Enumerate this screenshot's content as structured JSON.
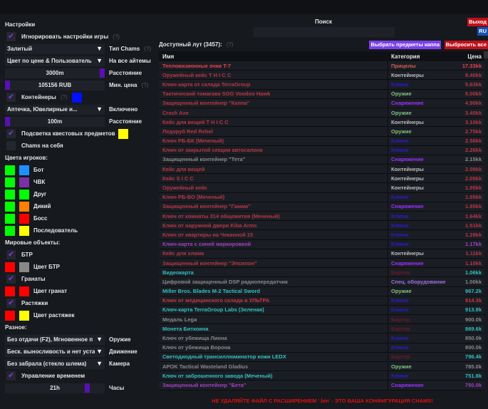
{
  "header": {
    "search_label": "Поиск",
    "exit": "Выход",
    "lang": "RU"
  },
  "settings": {
    "title": "Настройки",
    "ignore_game": "Игнорировать настройки игры",
    "help": "(?)",
    "chams_mode": "Залитый",
    "chams_type_label": "Тип Chams",
    "color_mode": "Цвет по цене & Пользователь",
    "all_items_label": "На все айтемы",
    "distance": "3000m",
    "distance_label": "Расстояние",
    "min_price": "105156 RUB",
    "min_price_label": "Мин. цена",
    "containers": "Контейнеры",
    "container_types": "Аптечка, Ювелирные и...",
    "enabled_label": "Включено",
    "container_distance": "100m",
    "container_distance_label": "Расстояние",
    "quest_highlight": "Подсветка квестовых предметов",
    "self_chams": "Chams на себя",
    "player_colors_title": "Цвета игроков:",
    "players": [
      {
        "label": "Бот",
        "c1": "#00ff00",
        "c2": "#1e90ff"
      },
      {
        "label": "ЧВК",
        "c1": "#00ff00",
        "c2": "#7b2fa8"
      },
      {
        "label": "Друг",
        "c1": "#00ff00",
        "c2": "#00ff00"
      },
      {
        "label": "Дикий",
        "c1": "#00ff00",
        "c2": "#ff8000"
      },
      {
        "label": "Босс",
        "c1": "#00ff00",
        "c2": "#ff0000"
      },
      {
        "label": "Последователь",
        "c1": "#00ff00",
        "c2": "#ffff00"
      }
    ],
    "world_title": "Мировые объекты:",
    "btr": "БТР",
    "btr_color": "Цвет БТР",
    "grenades": "Гранаты",
    "grenades_color": "Цвет гранат",
    "tripwires": "Растяжки",
    "tripwires_color": "Цвет растяжек",
    "misc_title": "Разное:",
    "weapon": "Без отдачи (F2), Мгновенное п",
    "weapon_label": "Оружие",
    "movement": "Беск. выносливость и нет уста",
    "movement_label": "Движение",
    "camera": "Без забрала (стекло шлема)",
    "camera_label": "Камера",
    "time_control": "Управление временем",
    "hours": "21h",
    "hours_label": "Часы"
  },
  "loot": {
    "title": "Доступный лут (3457):",
    "help": "(?)",
    "select_kappa": "Выбрать предметы каппа",
    "drop_all": "Выбросить все",
    "columns": [
      "Имя",
      "Категория",
      "Цена"
    ],
    "rows": [
      [
        "Тепловизионные очки T-7",
        "Прицелы",
        "17.33kk",
        "#e84050",
        "#d06050"
      ],
      [
        "Оружейный кейс T H I C C",
        "Контейнеры",
        "8.40kk",
        "#b83545",
        "#bbbbbb"
      ],
      [
        "Ключ-карта от склада TerraGroup",
        "Ключи",
        "5.63kk",
        "#b83545",
        "#2a1ccc"
      ],
      [
        "Тактический томагавк SOG Voodoo Hawk",
        "Оружие",
        "5.00kk",
        "#b83545",
        "#80c080"
      ],
      [
        "Защищенный контейнер \"Каппа\"",
        "Снаряжение",
        "4.90kk",
        "#b83545",
        "#9b30ff"
      ],
      [
        "Crash Axe",
        "Оружие",
        "3.40kk",
        "#b83545",
        "#80c080"
      ],
      [
        "Кейс для вещей T H I C C",
        "Контейнеры",
        "3.10kk",
        "#b83545",
        "#bbbbbb"
      ],
      [
        "Ледоруб Red Rebel",
        "Оружие",
        "2.75kk",
        "#b83545",
        "#80c080"
      ],
      [
        "Ключ РБ-БК (Меченый)",
        "Ключи",
        "2.58kk",
        "#b83545",
        "#2a1ccc"
      ],
      [
        "Ключ от закрытой секции автосалона",
        "Ключи",
        "2.26kk",
        "#b83545",
        "#2a1ccc"
      ],
      [
        "Защищенный контейнер \"Тета\"",
        "Снаряжение",
        "2.15kk",
        "#888888",
        "#9b30ff"
      ],
      [
        "Кейс для вещей",
        "Контейнеры",
        "2.08kk",
        "#b83545",
        "#bbbbbb"
      ],
      [
        "Кейс S I C C",
        "Контейнеры",
        "2.05kk",
        "#b83545",
        "#bbbbbb"
      ],
      [
        "Оружейный кейс",
        "Контейнеры",
        "1.95kk",
        "#b83545",
        "#bbbbbb"
      ],
      [
        "Ключ РБ-ВО (Меченый)",
        "Ключи",
        "1.85kk",
        "#b83545",
        "#2a1ccc"
      ],
      [
        "Защищенный контейнер \"Гамма\"",
        "Снаряжение",
        "1.85kk",
        "#b83545",
        "#9b30ff"
      ],
      [
        "Ключ от комнаты 314 общежития (Меченый)",
        "Ключи",
        "1.64kk",
        "#b83545",
        "#2a1ccc"
      ],
      [
        "Ключ от наружной двери Kiba Arms",
        "Ключи",
        "1.51kk",
        "#b83545",
        "#2a1ccc"
      ],
      [
        "Ключ от квартиры на Чеканной 15",
        "Ключи",
        "1.29kk",
        "#b83545",
        "#2a1ccc"
      ],
      [
        "Ключ-карта с синей маркировкой",
        "Ключи",
        "1.17kk",
        "#a040c0",
        "#2a1ccc"
      ],
      [
        "Кейс для хлама",
        "Контейнеры",
        "1.11kk",
        "#b83545",
        "#bbbbbb"
      ],
      [
        "Защищенный контейнер \"Эпсилон\"",
        "Снаряжение",
        "1.10kk",
        "#b83545",
        "#9b30ff"
      ],
      [
        "Видеокарта",
        "Бартер",
        "1.06kk",
        "#30c0c0",
        "#6a1828"
      ],
      [
        "Цифровой защищенный DSP радиопередатчик",
        "Спец. оборудование",
        "1.00kk",
        "#888888",
        "#a070e0"
      ],
      [
        "Miller Bros. Blades M-2 Tactical Sword",
        "Оружие",
        "967.2k",
        "#30c0c0",
        "#80c080"
      ],
      [
        "Ключ от медицинского склада в УЛЬТРА",
        "Ключи",
        "914.3k",
        "#c83545",
        "#2a1ccc"
      ],
      [
        "Ключ-карта TerraGroup Labs (Зеленая)",
        "Ключи",
        "913.8k",
        "#30c0c0",
        "#2a1ccc"
      ],
      [
        "Медаль Lega",
        "Бартер",
        "900.0k",
        "#888888",
        "#6a1828"
      ],
      [
        "Монета Биткоина",
        "Бартер",
        "869.6k",
        "#30c0c0",
        "#6a1828"
      ],
      [
        "Ключ от убежища Лиона",
        "Ключи",
        "850.0k",
        "#888888",
        "#2a1ccc"
      ],
      [
        "Ключ от убежища Ворона",
        "Ключи",
        "800.0k",
        "#888888",
        "#2a1ccc"
      ],
      [
        "Светодиодный трансиллюминатор кожи LEDX",
        "Бартер",
        "796.4k",
        "#30c0c0",
        "#6a1828"
      ],
      [
        "APOK Tactical Wasteland Gladius",
        "Оружие",
        "785.0k",
        "#888888",
        "#80c080"
      ],
      [
        "Ключ от заброшенного завода (Меченый)",
        "Ключи",
        "751.8k",
        "#30c0c0",
        "#2a1ccc"
      ],
      [
        "Защищенный контейнер \"Бета\"",
        "Снаряжение",
        "750.0k",
        "#a040c0",
        "#9b30ff"
      ]
    ]
  },
  "warning": "НЕ УДАЛЯЙТЕ ФАЙЛ С РАСШИРЕНИЕМ '.bin' - ЭТО ВАША КОНФИГУРАЦИЯ CHAMS!",
  "colors": {
    "accent": "#5a0fb5",
    "exit": "#c0101a",
    "lang": "#1a50b0",
    "kappa": "#7a40e8",
    "containers_swatch": "#0010ff",
    "quest_swatch": "#ffff00",
    "btr_c1": "#ff0000",
    "btr_c2": "#888888",
    "gren_c1": "#ff0000",
    "gren_c2": "#ff0000",
    "trip_c1": "#ff0000",
    "trip_c2": "#ffff00"
  }
}
